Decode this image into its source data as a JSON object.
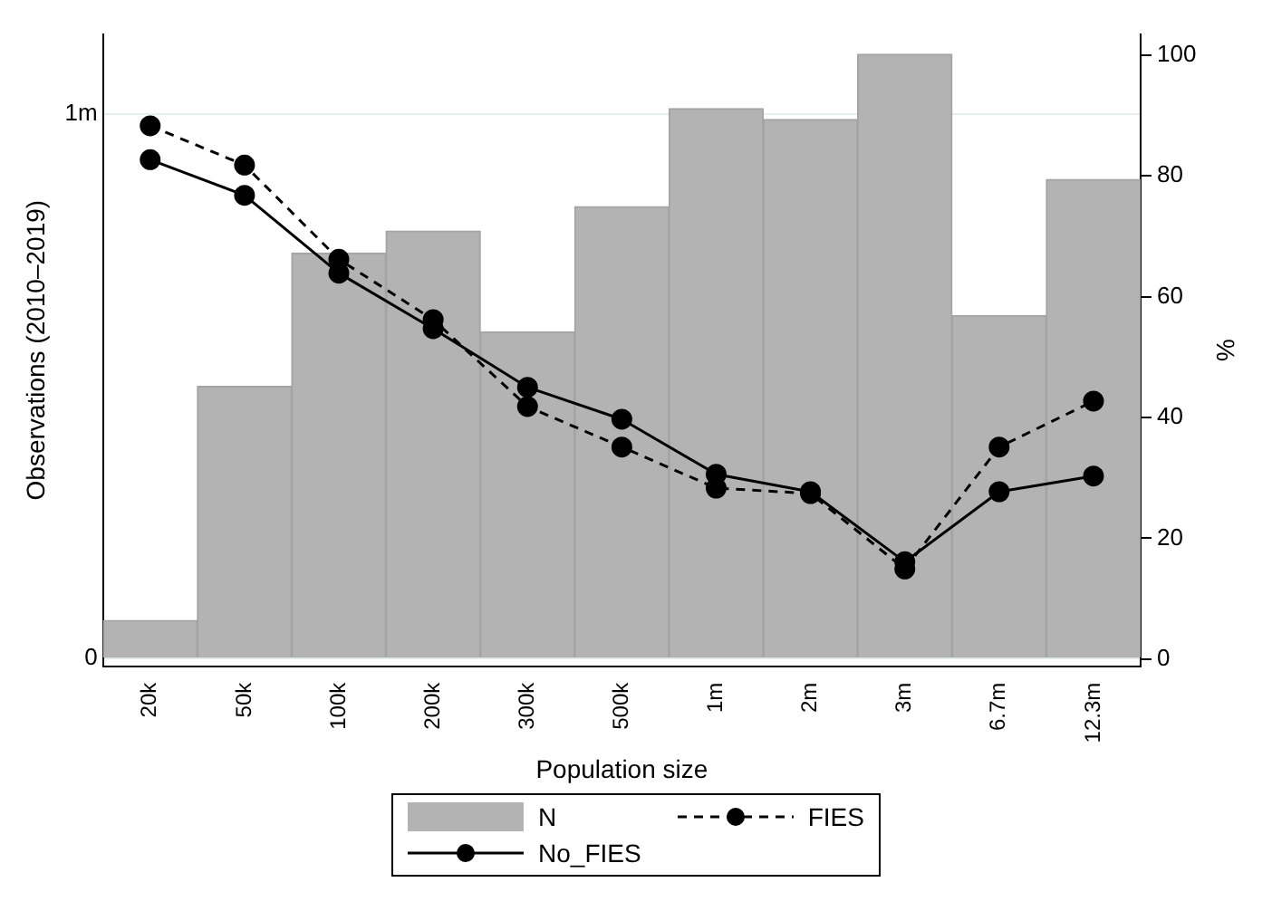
{
  "chart_data": {
    "type": "bar",
    "xlabel": "Population size",
    "ylabel": "Observations (2010–2019)",
    "y2label": "%",
    "categories": [
      "20k",
      "50k",
      "100k",
      "200k",
      "300k",
      "500k",
      "1m",
      "2m",
      "3m",
      "6.7m",
      "12.3m"
    ],
    "series": [
      {
        "name": "N",
        "color": "#b3b3b3",
        "values": [
          70000,
          500000,
          745000,
          785000,
          600000,
          830000,
          1010000,
          990000,
          1110000,
          630000,
          880000
        ]
      },
      {
        "name": "FIES",
        "type": "line",
        "axis": "y2",
        "color": "#000000",
        "line_style": "dashed",
        "marker": "circle",
        "values": [
          88.3,
          81.8,
          66.2,
          56.2,
          41.8,
          35.1,
          28.3,
          27.4,
          14.9,
          35.1,
          42.7
        ]
      },
      {
        "name": "No_FIES",
        "type": "line",
        "axis": "y2",
        "color": "#000000",
        "line_style": "solid",
        "marker": "circle",
        "values": [
          82.7,
          76.8,
          63.9,
          54.7,
          45,
          39.7,
          30.6,
          27.7,
          16.1,
          27.7,
          30.3
        ]
      }
    ],
    "ylim": [
      -14000,
      1147000
    ],
    "yticks": [
      0,
      {
        "value": 1000000,
        "label": "1m"
      }
    ],
    "y2lim": [
      -1.2,
      103.5
    ],
    "y2ticks": [
      0,
      20,
      40,
      60,
      80,
      100
    ],
    "grid": "y",
    "legend": "bottom"
  }
}
